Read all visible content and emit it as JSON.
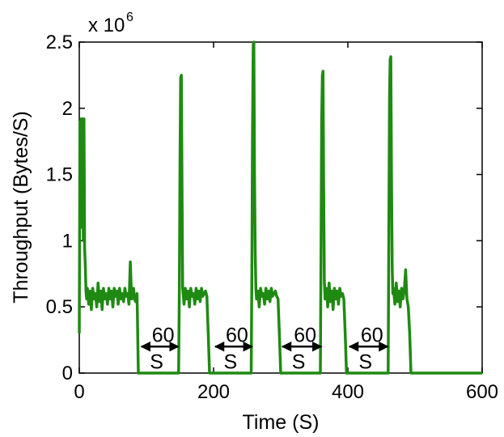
{
  "chart_data": {
    "type": "line",
    "title": "",
    "xlabel": "Time (S)",
    "ylabel": "Throughput (Bytes/S)",
    "xlim": [
      0,
      600
    ],
    "ylim": [
      0,
      2500000
    ],
    "xticks": [
      0,
      200,
      400,
      600
    ],
    "xtick_labels": [
      "0",
      "200",
      "400",
      "600"
    ],
    "yticks": [
      0,
      500000,
      1000000,
      1500000,
      2000000,
      2500000
    ],
    "ytick_labels": [
      "0",
      "0.5",
      "1",
      "1.5",
      "2",
      "2.5"
    ],
    "y_multiplier_label": "x 10",
    "y_multiplier_exponent": "6",
    "grid": false,
    "legend": "none",
    "series": [
      {
        "color": "#1f8a12",
        "x": [
          0,
          1,
          2,
          3,
          4,
          5,
          6,
          7,
          8,
          9,
          10,
          11,
          12,
          14,
          16,
          18,
          20,
          22,
          24,
          26,
          28,
          30,
          32,
          34,
          36,
          38,
          40,
          42,
          44,
          46,
          48,
          50,
          52,
          54,
          56,
          58,
          60,
          62,
          64,
          66,
          68,
          70,
          72,
          74,
          76,
          78,
          80,
          81,
          82,
          84,
          86,
          88,
          148,
          149,
          150,
          151,
          152,
          153,
          154,
          156,
          158,
          160,
          162,
          164,
          166,
          168,
          170,
          172,
          174,
          176,
          178,
          180,
          182,
          184,
          186,
          188,
          190,
          192,
          194,
          196,
          198,
          256,
          257,
          258,
          259,
          260,
          261,
          262,
          263,
          264,
          266,
          268,
          270,
          272,
          274,
          276,
          278,
          280,
          282,
          284,
          286,
          288,
          290,
          292,
          294,
          296,
          298,
          300,
          302,
          359,
          360,
          361,
          362,
          363,
          364,
          365,
          366,
          368,
          370,
          372,
          374,
          376,
          378,
          380,
          382,
          384,
          386,
          388,
          390,
          392,
          394,
          396,
          398,
          400,
          402,
          460,
          461,
          462,
          463,
          464,
          465,
          466,
          467,
          468,
          470,
          472,
          474,
          476,
          478,
          480,
          482,
          484,
          486,
          488,
          490,
          492,
          494,
          496,
          498,
          500,
          600
        ],
        "y": [
          300000,
          1900000,
          1150000,
          1920000,
          1100000,
          1920000,
          1000000,
          1920000,
          950000,
          800000,
          620000,
          560000,
          640000,
          520000,
          620000,
          480000,
          640000,
          560000,
          600000,
          500000,
          680000,
          540000,
          620000,
          480000,
          640000,
          560000,
          600000,
          520000,
          640000,
          560000,
          620000,
          500000,
          640000,
          580000,
          620000,
          520000,
          640000,
          560000,
          600000,
          540000,
          640000,
          580000,
          600000,
          520000,
          840000,
          560000,
          620000,
          640000,
          560000,
          540000,
          600000,
          0,
          0,
          650000,
          1600000,
          2230000,
          2250000,
          1400000,
          640000,
          520000,
          640000,
          560000,
          620000,
          500000,
          640000,
          580000,
          600000,
          520000,
          640000,
          560000,
          620000,
          540000,
          640000,
          580000,
          600000,
          620000,
          580000,
          300000,
          0,
          0,
          0,
          0,
          700000,
          1800000,
          2480000,
          2500000,
          1500000,
          900000,
          640000,
          560000,
          620000,
          500000,
          640000,
          580000,
          600000,
          520000,
          640000,
          560000,
          620000,
          540000,
          640000,
          580000,
          600000,
          620000,
          580000,
          560000,
          300000,
          0,
          0,
          0,
          900000,
          1900000,
          2250000,
          2280000,
          1400000,
          700000,
          560000,
          640000,
          500000,
          680000,
          540000,
          620000,
          480000,
          640000,
          560000,
          620000,
          520000,
          640000,
          580000,
          600000,
          560000,
          300000,
          0,
          0,
          0,
          0,
          1000000,
          2100000,
          2370000,
          2390000,
          1500000,
          800000,
          600000,
          640000,
          520000,
          680000,
          540000,
          620000,
          500000,
          640000,
          560000,
          620000,
          780000,
          560000,
          500000,
          300000,
          0,
          0,
          0,
          0,
          0
        ]
      }
    ],
    "annotations": [
      {
        "label_top": "60",
        "label_bottom": "S",
        "x_start": 90,
        "x_end": 150,
        "y": 200000
      },
      {
        "label_top": "60",
        "label_bottom": "S",
        "x_start": 200,
        "x_end": 260,
        "y": 200000
      },
      {
        "label_top": "60",
        "label_bottom": "S",
        "x_start": 300,
        "x_end": 363,
        "y": 200000
      },
      {
        "label_top": "60",
        "label_bottom": "S",
        "x_start": 400,
        "x_end": 462,
        "y": 200000
      }
    ]
  }
}
